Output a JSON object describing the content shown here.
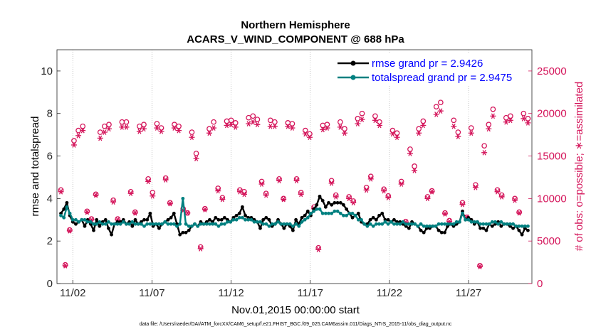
{
  "chart_data": {
    "type": "line",
    "title": "Northern Hemisphere",
    "subtitle": "ACARS_V_WIND_COMPONENT @ 688 hPa",
    "xlabel": "Nov.01,2015 00:00:00 start",
    "ylabel_left": "rmse and totalspread",
    "ylabel_right": "# of obs: o=possible; ∗=assimilated",
    "ylim_left": [
      0,
      11
    ],
    "ylim_right": [
      0,
      27500
    ],
    "yticks_left": [
      "0",
      "2",
      "4",
      "6",
      "8",
      "10"
    ],
    "yticks_right": [
      "0",
      "5000",
      "10000",
      "15000",
      "20000",
      "25000"
    ],
    "x_start_day": 1,
    "x_end_day": 31,
    "x_ticks": [
      {
        "day": 2,
        "label": "11/02"
      },
      {
        "day": 7,
        "label": "11/07"
      },
      {
        "day": 12,
        "label": "11/12"
      },
      {
        "day": 17,
        "label": "11/17"
      },
      {
        "day": 22,
        "label": "11/22"
      },
      {
        "day": 27,
        "label": "11/27"
      }
    ],
    "legend": [
      {
        "label": "rmse grand pr = 2.9426",
        "color": "#000000"
      },
      {
        "label": "totalspread grand pr = 2.9475",
        "color": "#008080"
      }
    ],
    "colors": {
      "rmse": "#000000",
      "totalspread": "#008080",
      "obs": "#d4145a",
      "legend_text": "#0000ff"
    },
    "series": [
      {
        "name": "rmse",
        "values": [
          3.3,
          3.5,
          3.8,
          3.2,
          2.9,
          2.8,
          2.9,
          3.0,
          2.7,
          3.0,
          2.8,
          2.5,
          3.0,
          2.7,
          2.9,
          3.0,
          2.6,
          2.3,
          2.8,
          2.9,
          2.9,
          3.0,
          2.8,
          2.9,
          2.7,
          3.0,
          2.8,
          2.9,
          3.0,
          3.0,
          3.3,
          2.7,
          2.8,
          2.6,
          2.8,
          2.9,
          3.0,
          3.1,
          3.3,
          2.8,
          2.3,
          2.4,
          2.4,
          2.5,
          2.7,
          2.8,
          2.7,
          2.9,
          2.8,
          2.9,
          3.0,
          2.9,
          3.1,
          3.0,
          3.0,
          3.1,
          3.0,
          2.9,
          3.1,
          3.2,
          3.3,
          3.6,
          3.2,
          3.1,
          3.1,
          3.0,
          2.9,
          2.6,
          3.0,
          3.1,
          3.0,
          2.7,
          2.8,
          3.0,
          2.8,
          2.6,
          2.8,
          2.7,
          2.5,
          3.0,
          2.8,
          3.1,
          3.2,
          3.4,
          3.2,
          3.5,
          3.7,
          4.1,
          3.9,
          3.6,
          3.8,
          3.7,
          3.8,
          3.8,
          3.8,
          3.7,
          3.5,
          3.3,
          3.1,
          3.2,
          3.3,
          2.9,
          2.8,
          2.8,
          3.0,
          3.1,
          3.0,
          3.2,
          3.3,
          3.0,
          3.0,
          2.9,
          3.0,
          2.9,
          2.9,
          2.8,
          2.7,
          2.6,
          2.9,
          2.8,
          2.7,
          2.5,
          2.4,
          2.6,
          2.6,
          2.7,
          2.7,
          2.5,
          2.4,
          2.4,
          2.7,
          2.8,
          2.7,
          2.8,
          2.9,
          3.4,
          3.0,
          3.1,
          3.0,
          2.8,
          2.9,
          2.6,
          2.6,
          2.5,
          2.8,
          2.7,
          2.8,
          2.9,
          2.7,
          2.8,
          2.8,
          2.7,
          2.6,
          2.7,
          2.5,
          2.3,
          2.6,
          2.5
        ]
      },
      {
        "name": "totalspread",
        "values": [
          3.2,
          3.1,
          3.6,
          3.3,
          3.0,
          3.0,
          2.9,
          3.0,
          3.0,
          2.9,
          2.9,
          2.8,
          2.8,
          2.9,
          2.8,
          2.8,
          2.9,
          2.8,
          2.8,
          2.8,
          2.8,
          2.9,
          2.8,
          2.8,
          2.9,
          2.8,
          2.8,
          2.8,
          2.7,
          2.8,
          2.8,
          2.8,
          2.8,
          2.8,
          2.8,
          2.9,
          2.8,
          2.8,
          2.8,
          2.7,
          2.8,
          4.0,
          2.8,
          2.7,
          2.7,
          2.8,
          2.7,
          2.8,
          2.8,
          2.8,
          2.8,
          2.8,
          2.8,
          2.7,
          2.8,
          2.8,
          2.9,
          2.9,
          3.0,
          3.0,
          3.1,
          3.1,
          3.0,
          3.0,
          3.0,
          2.9,
          2.9,
          2.9,
          2.8,
          2.8,
          2.7,
          2.8,
          2.8,
          2.9,
          2.8,
          2.8,
          2.8,
          2.8,
          2.7,
          2.8,
          2.7,
          2.9,
          3.0,
          3.1,
          3.3,
          3.4,
          3.5,
          3.5,
          3.3,
          3.3,
          3.3,
          3.3,
          3.4,
          3.4,
          3.3,
          3.2,
          3.2,
          3.3,
          3.3,
          3.2,
          3.0,
          3.0,
          2.8,
          2.7,
          2.8,
          2.7,
          2.8,
          2.8,
          2.8,
          2.9,
          2.8,
          2.9,
          2.8,
          2.8,
          2.8,
          2.9,
          2.8,
          2.8,
          2.8,
          2.8,
          2.7,
          2.8,
          2.7,
          2.7,
          2.7,
          2.7,
          2.7,
          2.8,
          2.8,
          2.8,
          2.8,
          2.8,
          2.8,
          2.9,
          2.9,
          3.3,
          3.0,
          3.0,
          2.9,
          2.9,
          2.9,
          2.8,
          2.8,
          2.8,
          2.8,
          2.9,
          2.9,
          2.8,
          2.9,
          2.8,
          2.8,
          2.8,
          2.8,
          2.7,
          2.7,
          2.7,
          2.7,
          2.7
        ]
      },
      {
        "name": "obs_possible",
        "values": [
          11000,
          2200,
          6300,
          16800,
          18000,
          18500,
          8500,
          7600,
          10500,
          17800,
          18500,
          18700,
          9800,
          7600,
          19000,
          19000,
          10800,
          8400,
          18500,
          18700,
          12300,
          10700,
          18800,
          18300,
          12400,
          9500,
          18700,
          18500,
          8800,
          8300,
          17800,
          15300,
          4300,
          8800,
          18200,
          19000,
          11200,
          10100,
          19100,
          19200,
          18900,
          11000,
          10800,
          19500,
          19700,
          19300,
          12000,
          10600,
          19200,
          19000,
          12300,
          10000,
          18900,
          18800,
          12300,
          10700,
          18000,
          17600,
          9000,
          4200,
          18600,
          18700,
          12100,
          10400,
          19000,
          18200,
          10200,
          9700,
          19400,
          20000,
          11300,
          12600,
          19700,
          19000,
          11100,
          10300,
          18000,
          17700,
          12000,
          7300,
          15800,
          13800,
          18200,
          19100,
          10200,
          10900,
          20800,
          21300,
          8300,
          7400,
          19200,
          17800,
          9500,
          7800,
          18300,
          11600,
          2100,
          16200,
          18700,
          20500,
          11000,
          10400,
          19500,
          19700,
          10000,
          8400,
          20000,
          19400
        ]
      },
      {
        "name": "obs_assimilated",
        "values": [
          10800,
          2100,
          6200,
          16300,
          17400,
          18000,
          8400,
          7500,
          10400,
          17100,
          17800,
          18200,
          9600,
          7500,
          18400,
          18400,
          10600,
          8300,
          17900,
          18200,
          12000,
          10300,
          18300,
          17900,
          12200,
          9400,
          18300,
          18000,
          8600,
          8300,
          17200,
          14700,
          4100,
          8700,
          17700,
          18300,
          10900,
          9900,
          18600,
          18700,
          18400,
          10800,
          10500,
          18800,
          19000,
          18700,
          11700,
          10400,
          18500,
          18500,
          12100,
          9900,
          18500,
          18300,
          12100,
          10500,
          17600,
          17200,
          8800,
          4000,
          18100,
          18300,
          11800,
          10200,
          18400,
          17700,
          10000,
          9500,
          18800,
          19300,
          11000,
          12300,
          19200,
          18600,
          10900,
          10100,
          17600,
          17200,
          11700,
          7200,
          15300,
          13300,
          17700,
          18600,
          10000,
          10800,
          19900,
          20300,
          8200,
          7300,
          18500,
          17300,
          9300,
          7800,
          17700,
          11300,
          2000,
          15400,
          18200,
          19700,
          10800,
          10200,
          19000,
          19200,
          9800,
          8300,
          19400,
          18900
        ]
      }
    ],
    "footnote": "data file: /Users/raeder/DAI/ATM_forcXX/CAM6_setup/f.e21.FHIST_BGC.f09_025.CAM6assim.011/Diags_NTrS_2015-11/obs_diag_output.nc"
  }
}
